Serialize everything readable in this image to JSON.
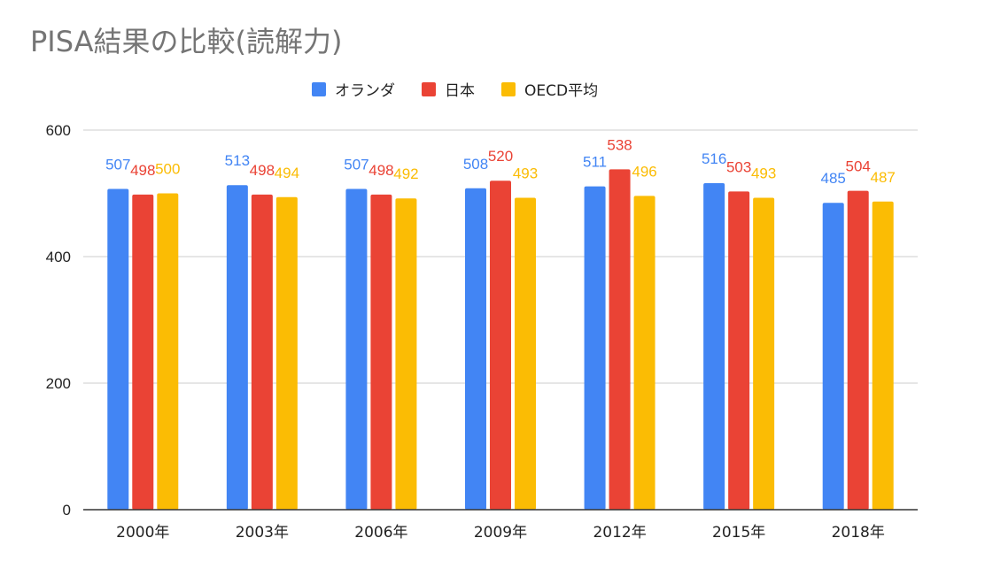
{
  "title": "PISA結果の比較(読解力)",
  "chart_data": {
    "type": "bar",
    "title": "PISA結果の比較(読解力)",
    "categories": [
      "2000年",
      "2003年",
      "2006年",
      "2009年",
      "2012年",
      "2015年",
      "2018年"
    ],
    "series": [
      {
        "name": "オランダ",
        "color": "#4285f4",
        "values": [
          507,
          513,
          507,
          508,
          511,
          516,
          485
        ],
        "labels": [
          "507",
          "513",
          "507",
          "508",
          "511",
          "516",
          "485"
        ]
      },
      {
        "name": "日本",
        "color": "#ea4335",
        "values": [
          498,
          498,
          498,
          520,
          538,
          503,
          504
        ],
        "labels": [
          "498",
          "498",
          "498",
          "520",
          "538",
          "503",
          "504"
        ]
      },
      {
        "name": "OECD平均",
        "color": "#fbbc04",
        "values": [
          500,
          494,
          492,
          493,
          496,
          493,
          487
        ],
        "labels": [
          "500",
          "494",
          "492",
          "493",
          "496",
          "493",
          "487"
        ]
      }
    ],
    "ylim": [
      0,
      600
    ],
    "yticks": [
      "0",
      "200",
      "400",
      "600"
    ],
    "grid": true,
    "legend_position": "top"
  }
}
